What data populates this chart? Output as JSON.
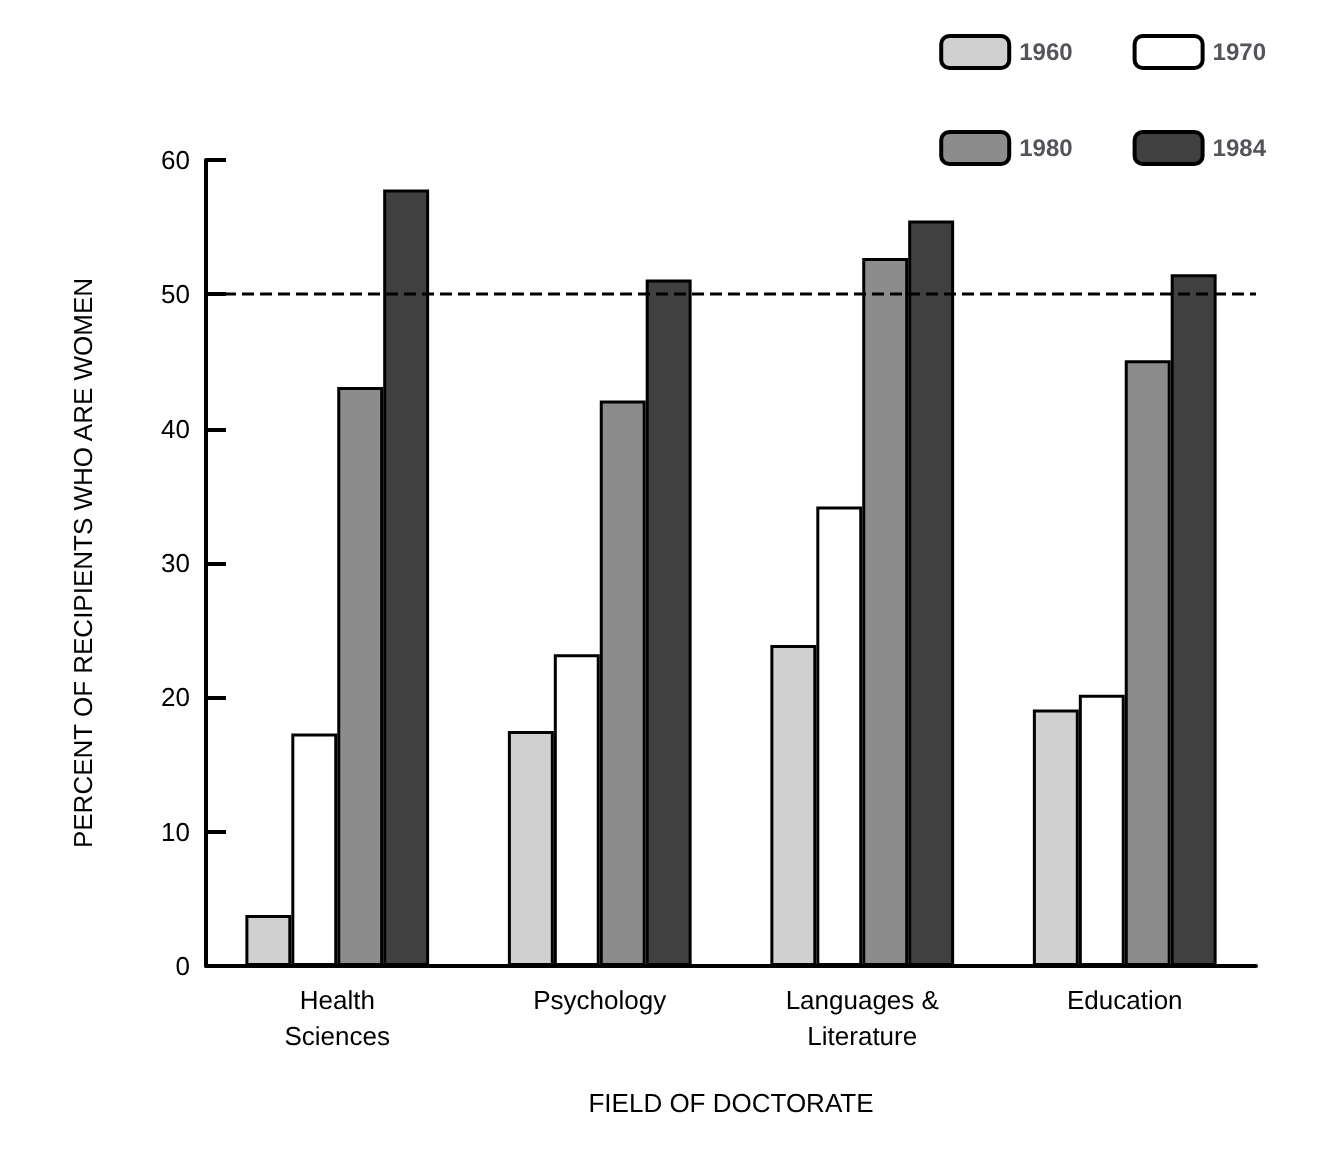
{
  "chart_data": {
    "type": "bar",
    "xlabel": "FIELD OF DOCTORATE",
    "ylabel": "PERCENT OF RECIPIENTS WHO ARE WOMEN",
    "categories": [
      "Health\nSciences",
      "Psychology",
      "Languages &\nLiterature",
      "Education"
    ],
    "series": [
      {
        "name": "1960",
        "color": "#d0d0d0",
        "values": [
          3.8,
          17.5,
          23.9,
          19.1
        ]
      },
      {
        "name": "1970",
        "color": "#ffffff",
        "values": [
          17.3,
          23.2,
          34.2,
          20.2
        ]
      },
      {
        "name": "1980",
        "color": "#8c8c8c",
        "values": [
          43.1,
          42.1,
          52.7,
          45.1
        ]
      },
      {
        "name": "1984",
        "color": "#404040",
        "values": [
          57.8,
          51.1,
          55.5,
          51.5
        ]
      }
    ],
    "ylim": [
      0,
      60
    ],
    "yticks": [
      0,
      10,
      20,
      30,
      40,
      50,
      60
    ],
    "grid": false,
    "legend": "top right",
    "ref_lines": [
      {
        "axis": "y",
        "value": 50,
        "line_style": "dashed",
        "color": "#000000"
      }
    ]
  }
}
